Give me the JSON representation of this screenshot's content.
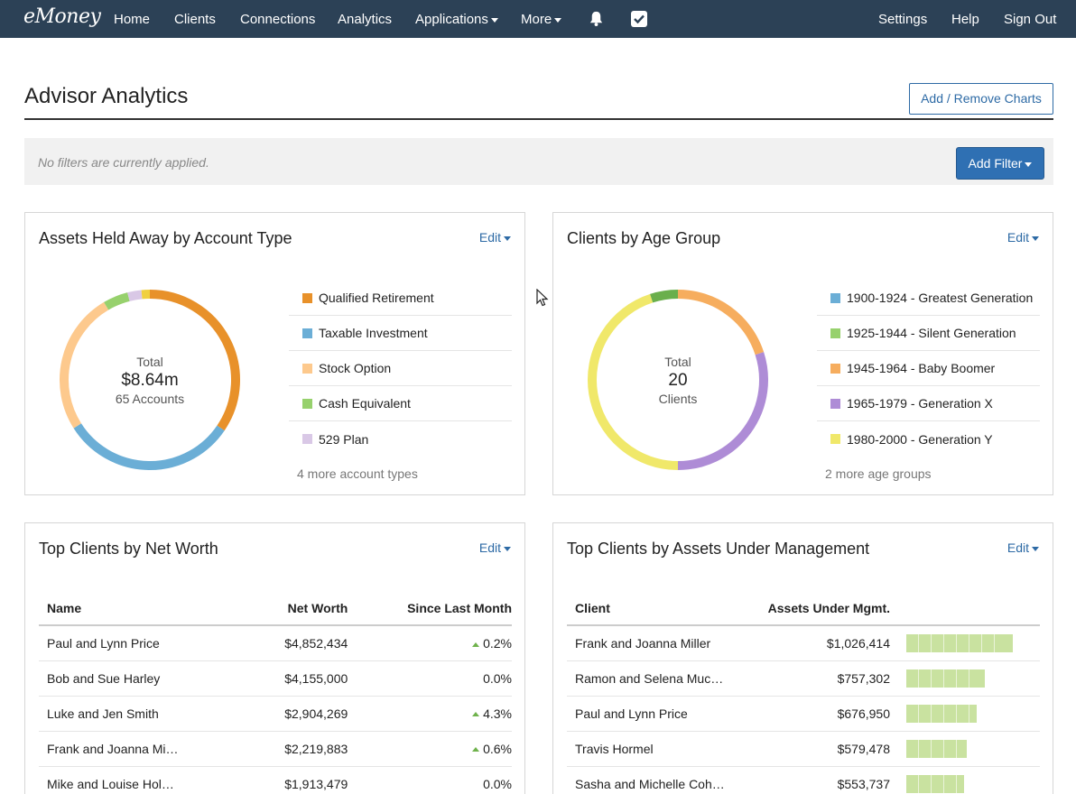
{
  "nav": {
    "logo": "eMoney",
    "items": [
      "Home",
      "Clients",
      "Connections",
      "Analytics",
      "Applications",
      "More"
    ],
    "right": [
      "Settings",
      "Help",
      "Sign Out"
    ]
  },
  "header": {
    "title": "Advisor Analytics",
    "add_remove_label": "Add / Remove Charts"
  },
  "filters": {
    "empty_text": "No filters are currently applied.",
    "add_filter_label": "Add Filter"
  },
  "edit_label": "Edit",
  "assets_card": {
    "title": "Assets Held Away by Account Type",
    "center_label": "Total",
    "center_value": "$8.64m",
    "center_sub": "65 Accounts",
    "legend": [
      {
        "label": "Qualified Retirement",
        "color": "#e8912a"
      },
      {
        "label": "Taxable Investment",
        "color": "#6baed6"
      },
      {
        "label": "Stock Option",
        "color": "#fdc98d"
      },
      {
        "label": "Cash Equivalent",
        "color": "#97d16d"
      },
      {
        "label": "529 Plan",
        "color": "#d9c8e6"
      }
    ],
    "more": "4 more account types",
    "slices": [
      {
        "value": 0.345,
        "color": "#e8912a"
      },
      {
        "value": 0.315,
        "color": "#6baed6"
      },
      {
        "value": 0.255,
        "color": "#fdc98d"
      },
      {
        "value": 0.045,
        "color": "#97d16d"
      },
      {
        "value": 0.025,
        "color": "#d9c8e6"
      },
      {
        "value": 0.015,
        "color": "#f0d040"
      }
    ]
  },
  "age_card": {
    "title": "Clients by Age Group",
    "center_label": "Total",
    "center_value": "20",
    "center_sub": "Clients",
    "legend": [
      {
        "label": "1900-1924 - Greatest Generation",
        "color": "#6baed6"
      },
      {
        "label": "1925-1944 - Silent Generation",
        "color": "#97d16d"
      },
      {
        "label": "1945-1964 - Baby Boomer",
        "color": "#f6ad5e"
      },
      {
        "label": "1965-1979 - Generation X",
        "color": "#ae8cd6"
      },
      {
        "label": "1980-2000 - Generation Y",
        "color": "#f0e86a"
      }
    ],
    "more": "2 more age groups",
    "slices": [
      {
        "value": 0.2,
        "color": "#f6ad5e"
      },
      {
        "value": 0.3,
        "color": "#ae8cd6"
      },
      {
        "value": 0.45,
        "color": "#f0e86a"
      },
      {
        "value": 0.05,
        "color": "#6aaf4c"
      }
    ]
  },
  "networth_card": {
    "title": "Top Clients by Net Worth",
    "columns": [
      "Name",
      "Net Worth",
      "Since Last Month"
    ],
    "rows": [
      {
        "name": "Paul and Lynn Price",
        "worth": "$4,852,434",
        "change": "0.2%",
        "up": true
      },
      {
        "name": "Bob and Sue Harley",
        "worth": "$4,155,000",
        "change": "0.0%",
        "up": false
      },
      {
        "name": "Luke and Jen Smith",
        "worth": "$2,904,269",
        "change": "4.3%",
        "up": true
      },
      {
        "name": "Frank and Joanna Mi…",
        "worth": "$2,219,883",
        "change": "0.6%",
        "up": true
      },
      {
        "name": "Mike and Louise Hol…",
        "worth": "$1,913,479",
        "change": "0.0%",
        "up": false
      }
    ]
  },
  "aum_card": {
    "title": "Top Clients by Assets Under Management",
    "columns": [
      "Client",
      "Assets Under Mgmt."
    ],
    "rows": [
      {
        "name": "Frank and Joanna Miller",
        "aum": "$1,026,414",
        "fraction": 1.0
      },
      {
        "name": "Ramon and Selena Muc…",
        "aum": "$757,302",
        "fraction": 0.738
      },
      {
        "name": "Paul and Lynn Price",
        "aum": "$676,950",
        "fraction": 0.66
      },
      {
        "name": "Travis Hormel",
        "aum": "$579,478",
        "fraction": 0.565
      },
      {
        "name": "Sasha and Michelle Coh…",
        "aum": "$553,737",
        "fraction": 0.54
      }
    ]
  }
}
